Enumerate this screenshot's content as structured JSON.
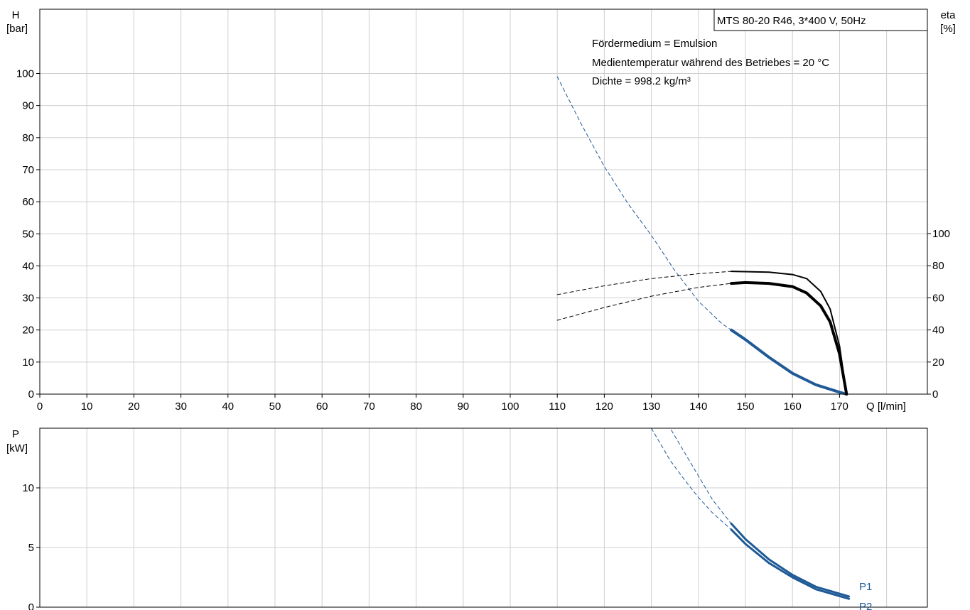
{
  "chart_data": [
    {
      "type": "line",
      "title": "MTS 80-20 R46, 3*400 V, 50Hz",
      "annotations": [
        "Fördermedium = Emulsion",
        "Medientemperatur während des Betriebes = 20 °C",
        "Dichte = 998.2 kg/m³"
      ],
      "xlabel": "Q [l/min]",
      "ylabel_line1": "H",
      "ylabel_line2": "[bar]",
      "y2label_line1": "eta",
      "y2label_line2": "[%]",
      "xlim": [
        0,
        170
      ],
      "ylim": [
        0,
        100
      ],
      "y2lim": [
        0,
        100
      ],
      "xticks": [
        0,
        10,
        20,
        30,
        40,
        50,
        60,
        70,
        80,
        90,
        100,
        110,
        120,
        130,
        140,
        150,
        160,
        170
      ],
      "xtick_labels": [
        "0",
        "10",
        "20",
        "30",
        "40",
        "50",
        "60",
        "70",
        "80",
        "90",
        "100",
        "110",
        "120",
        "130",
        "140",
        "150",
        "160",
        "170"
      ],
      "yticks": [
        0,
        10,
        20,
        30,
        40,
        50,
        60,
        70,
        80,
        90,
        100
      ],
      "ytick_labels": [
        "0",
        "10",
        "20",
        "30",
        "40",
        "50",
        "60",
        "70",
        "80",
        "90",
        "100"
      ],
      "y2ticks": [
        0,
        20,
        40,
        60,
        80,
        100
      ],
      "y2tick_labels": [
        "0",
        "20",
        "40",
        "60",
        "80",
        "100"
      ],
      "grid": true,
      "series": [
        {
          "axis": "y",
          "color": "#1f5a96",
          "style": "dashed",
          "width": 1,
          "x": [
            110,
            115,
            120,
            125,
            130,
            135,
            140,
            145,
            147
          ],
          "y": [
            99,
            84.5,
            71,
            59.5,
            49.5,
            38.5,
            29,
            22,
            20
          ]
        },
        {
          "axis": "y",
          "color": "#1f5a96",
          "style": "solid",
          "width": 4,
          "x": [
            147,
            150,
            155,
            160,
            165,
            170,
            171.5
          ],
          "y": [
            20,
            17,
            11.5,
            6.5,
            2.9,
            0.6,
            0
          ]
        },
        {
          "axis": "y2",
          "color": "#000000",
          "style": "dashed",
          "width": 1,
          "x": [
            110,
            120,
            130,
            140,
            147
          ],
          "y": [
            62,
            67.5,
            72,
            75,
            76.5
          ]
        },
        {
          "axis": "y2",
          "color": "#000000",
          "style": "solid",
          "width": 2,
          "x": [
            147,
            155,
            160,
            163,
            166,
            168,
            170,
            171.5
          ],
          "y": [
            76.5,
            76,
            74.5,
            72,
            64,
            53,
            30,
            0
          ]
        },
        {
          "axis": "y2",
          "color": "#000000",
          "style": "dashed",
          "width": 1,
          "x": [
            110,
            120,
            130,
            140,
            147
          ],
          "y": [
            46,
            54,
            61,
            66.5,
            69
          ]
        },
        {
          "axis": "y2",
          "color": "#000000",
          "style": "solid",
          "width": 4,
          "x": [
            147,
            150,
            155,
            160,
            163,
            166,
            168,
            170,
            171.5
          ],
          "y": [
            69,
            69.5,
            69,
            67,
            63,
            55,
            45,
            25,
            0
          ]
        }
      ]
    },
    {
      "type": "line",
      "xlabel": "",
      "ylabel_line1": "P",
      "ylabel_line2": "[kW]",
      "xlim": [
        0,
        170
      ],
      "ylim": [
        0,
        15
      ],
      "yticks": [
        0,
        5,
        10
      ],
      "ytick_labels": [
        "0",
        "5",
        "10"
      ],
      "grid": true,
      "series": [
        {
          "name": "P1",
          "axis": "y",
          "color": "#1f5a96",
          "style": "dashed",
          "width": 1,
          "x": [
            110,
            134,
            137,
            140,
            143,
            147
          ],
          "y": [
            15,
            15,
            13,
            11,
            9,
            7
          ]
        },
        {
          "name": "P1",
          "axis": "y",
          "color": "#1f5a96",
          "style": "solid",
          "width": 3,
          "x": [
            147,
            150,
            155,
            160,
            165,
            172
          ],
          "y": [
            7,
            5.7,
            4,
            2.7,
            1.7,
            0.9
          ]
        },
        {
          "name": "P2",
          "axis": "y",
          "color": "#1f5a96",
          "style": "dashed",
          "width": 1,
          "x": [
            130,
            134,
            137,
            140,
            143,
            147
          ],
          "y": [
            15,
            12.3,
            10.7,
            9.2,
            7.9,
            6.5
          ]
        },
        {
          "name": "P2",
          "axis": "y",
          "color": "#1f5a96",
          "style": "solid",
          "width": 3,
          "x": [
            147,
            150,
            155,
            160,
            165,
            172
          ],
          "y": [
            6.5,
            5.3,
            3.7,
            2.5,
            1.5,
            0.7
          ]
        }
      ],
      "series_labels": [
        {
          "text": "P1",
          "color": "#1f5a96"
        },
        {
          "text": "P2",
          "color": "#1f5a96"
        }
      ]
    }
  ]
}
